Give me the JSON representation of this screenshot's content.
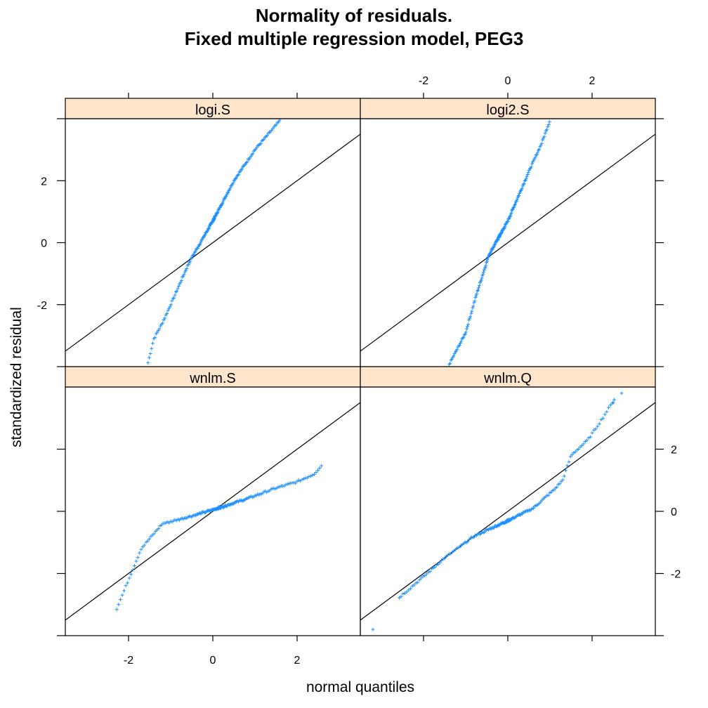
{
  "title_line1": "Normality of residuals.",
  "title_line2": "Fixed multiple regression model, PEG3",
  "xlabel": "normal quantiles",
  "ylabel": "standardized residual",
  "colors": {
    "points": "#1e90ff",
    "strip": "#ffe5cc",
    "line": "#000000"
  },
  "chart_data": [
    {
      "type": "scatter",
      "panel": "logi.S",
      "marker": "+",
      "reference_line": {
        "slope": 1,
        "intercept": 0
      },
      "xlim": [
        -3.5,
        3.5
      ],
      "ylim": [
        -4,
        4
      ],
      "xticks": [
        -2,
        0,
        2
      ],
      "yticks": [
        -2,
        0,
        2
      ],
      "curve": [
        [
          -1.55,
          -3.95
        ],
        [
          -1.4,
          -3.1
        ],
        [
          -1.2,
          -2.6
        ],
        [
          -1.0,
          -2.0
        ],
        [
          -0.55,
          -0.6
        ],
        [
          0.0,
          0.7
        ],
        [
          0.5,
          2.0
        ],
        [
          1.0,
          3.0
        ],
        [
          1.6,
          3.95
        ]
      ]
    },
    {
      "type": "scatter",
      "panel": "logi2.S",
      "marker": "+",
      "reference_line": {
        "slope": 1,
        "intercept": 0
      },
      "xlim": [
        -3.5,
        3.5
      ],
      "ylim": [
        -4,
        4
      ],
      "xticks": [
        -2,
        0,
        2
      ],
      "yticks": [
        -2,
        0,
        2
      ],
      "curve": [
        [
          -1.4,
          -3.95
        ],
        [
          -1.15,
          -3.3
        ],
        [
          -1.0,
          -2.9
        ],
        [
          -0.75,
          -1.7
        ],
        [
          -0.45,
          -0.4
        ],
        [
          0.0,
          0.7
        ],
        [
          0.5,
          2.3
        ],
        [
          0.8,
          3.2
        ],
        [
          1.0,
          3.95
        ]
      ]
    },
    {
      "type": "scatter",
      "panel": "wnlm.S",
      "marker": "+",
      "reference_line": {
        "slope": 1,
        "intercept": 0
      },
      "xlim": [
        -3.5,
        3.5
      ],
      "ylim": [
        -4,
        4
      ],
      "xticks": [
        -2,
        0,
        2
      ],
      "yticks": [
        -2,
        0,
        2
      ],
      "curve": [
        [
          -2.3,
          -3.2
        ],
        [
          -2.0,
          -2.2
        ],
        [
          -1.7,
          -1.2
        ],
        [
          -1.2,
          -0.4
        ],
        [
          -0.5,
          -0.15
        ],
        [
          0.0,
          0.05
        ],
        [
          0.8,
          0.4
        ],
        [
          1.5,
          0.75
        ],
        [
          2.0,
          0.95
        ],
        [
          2.4,
          1.2
        ],
        [
          2.6,
          1.5
        ]
      ]
    },
    {
      "type": "scatter",
      "panel": "wnlm.Q",
      "marker": "+",
      "reference_line": {
        "slope": 1,
        "intercept": 0
      },
      "xlim": [
        -3.5,
        3.5
      ],
      "ylim": [
        -4,
        4
      ],
      "xticks": [
        -2,
        0,
        2
      ],
      "yticks": [
        -2,
        0,
        2
      ],
      "curve": [
        [
          -2.6,
          -2.8
        ],
        [
          -2.0,
          -2.1
        ],
        [
          -1.5,
          -1.5
        ],
        [
          -0.8,
          -0.8
        ],
        [
          0.0,
          -0.3
        ],
        [
          0.6,
          0.1
        ],
        [
          1.1,
          0.7
        ],
        [
          1.3,
          1.0
        ],
        [
          1.5,
          1.8
        ],
        [
          1.9,
          2.3
        ],
        [
          2.2,
          2.9
        ],
        [
          2.55,
          3.65
        ]
      ],
      "extra_points": [
        [
          -3.2,
          -3.8
        ],
        [
          2.5,
          3.5
        ],
        [
          2.7,
          3.8
        ]
      ]
    }
  ]
}
